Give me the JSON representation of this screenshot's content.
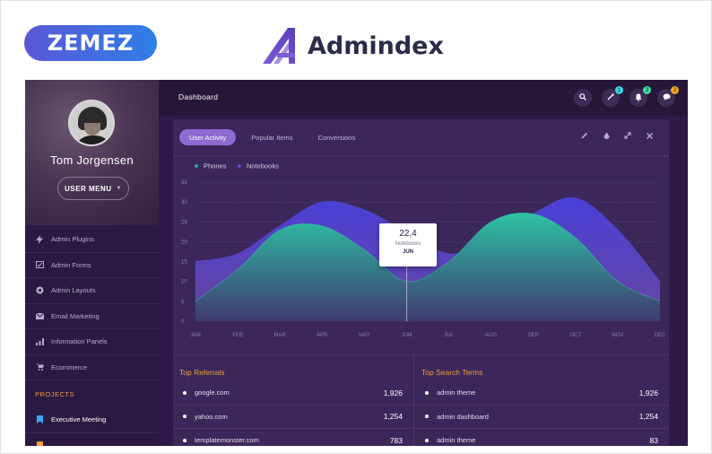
{
  "branding": {
    "zemez": "ZEMEZ",
    "product": "Admindex"
  },
  "topbar": {
    "title": "Dashboard",
    "badges": {
      "rocket": "1",
      "bell": "3",
      "chat": "2"
    }
  },
  "profile": {
    "name": "Tom Jorgensen",
    "menu_label": "USER MENU"
  },
  "sidebar": {
    "items": [
      {
        "label": "Admin Plugins",
        "icon": "bolt-icon"
      },
      {
        "label": "Admin Forms",
        "icon": "form-icon"
      },
      {
        "label": "Admin Layouts",
        "icon": "layout-icon"
      },
      {
        "label": "Email Marketing",
        "icon": "mail-icon"
      },
      {
        "label": "Information Panels",
        "icon": "signal-icon"
      },
      {
        "label": "Ecommerce",
        "icon": "cart-icon"
      }
    ],
    "section": "PROJECTS",
    "projects": [
      {
        "label": "Executive Meeting",
        "icon": "bookmark-icon"
      }
    ]
  },
  "card": {
    "tabs": [
      "User Activity",
      "Popular Items",
      "Conversions"
    ],
    "active_tab": "User Activity"
  },
  "tooltip": {
    "value": "22,4",
    "series": "Notebooks",
    "month": "JUN"
  },
  "chart_data": {
    "type": "area",
    "x": [
      "JAN",
      "FEB",
      "MAR",
      "APR",
      "MAY",
      "JUN",
      "JUL",
      "AUG",
      "SEP",
      "OCT",
      "NOV",
      "DEC"
    ],
    "ylim": [
      0,
      35
    ],
    "yticks": [
      "0",
      "5",
      "10",
      "15",
      "20",
      "25",
      "30",
      "35"
    ],
    "grid": true,
    "legend_position": "top-left",
    "series": [
      {
        "name": "Phones",
        "color": "#2ec4a4",
        "values": [
          5,
          13,
          23,
          24,
          18,
          10,
          15,
          25,
          27,
          21,
          10,
          5
        ]
      },
      {
        "name": "Notebooks",
        "color": "#5b52e6",
        "values": [
          15,
          17,
          24,
          30,
          28,
          22.4,
          17,
          20,
          27,
          31,
          23,
          10
        ]
      }
    ]
  },
  "top_referrals": {
    "title": "Top Referrals",
    "rows": [
      {
        "label": "google.com",
        "value": "1,926"
      },
      {
        "label": "yahoo.com",
        "value": "1,254"
      },
      {
        "label": "templatemonster.com",
        "value": "783"
      }
    ]
  },
  "top_search_terms": {
    "title": "Top Search Terms",
    "rows": [
      {
        "label": "admin theme",
        "value": "1,926"
      },
      {
        "label": "admin dashboard",
        "value": "1,254"
      },
      {
        "label": "admin theme",
        "value": "83"
      }
    ]
  },
  "colors": {
    "accent": "#8d6bd0",
    "orange": "#f0a037",
    "badge_cyan": "#3bd5e8",
    "badge_green": "#3ee0a0",
    "badge_orange": "#f5a623"
  }
}
